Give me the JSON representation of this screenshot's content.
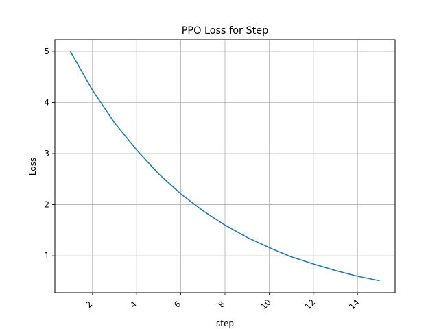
{
  "chart_data": {
    "type": "line",
    "title": "PPO Loss for Step",
    "xlabel": "step",
    "ylabel": "Loss",
    "xlim": [
      0.3,
      15.7
    ],
    "ylim": [
      0.277,
      5.227
    ],
    "xticks": [
      2,
      4,
      6,
      8,
      10,
      12,
      14
    ],
    "yticks": [
      1,
      2,
      3,
      4,
      5
    ],
    "xtick_rotation": 45,
    "grid": true,
    "line_color": "#1f77b4",
    "series": [
      {
        "x": [
          1,
          2,
          3,
          4,
          5,
          6,
          7,
          8,
          9,
          10,
          11,
          12,
          13,
          14,
          15
        ],
        "values": [
          5.0,
          4.24,
          3.6,
          3.07,
          2.6,
          2.21,
          1.88,
          1.6,
          1.36,
          1.16,
          0.98,
          0.84,
          0.71,
          0.6,
          0.51
        ]
      }
    ]
  }
}
